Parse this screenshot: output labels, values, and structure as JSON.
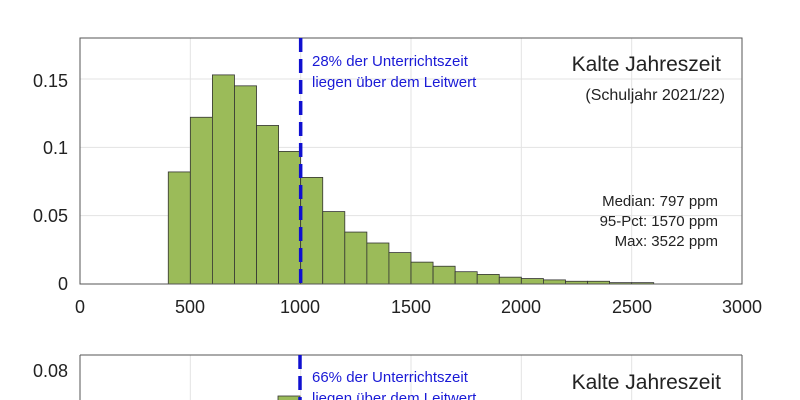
{
  "chart_data": [
    {
      "type": "histogram",
      "title": "Kalte Jahreszeit",
      "subtitle": "(Schuljahr 2021/22)",
      "xlim": [
        0,
        3000
      ],
      "ylim": [
        0,
        0.18
      ],
      "x_ticks": [
        "0",
        "500",
        "1000",
        "1500",
        "2000",
        "2500",
        "3000"
      ],
      "y_ticks": [
        "0",
        "0.05",
        "0.1",
        "0.15"
      ],
      "grid": true,
      "bar_color": "#9bbb59",
      "threshold_color": "#1010d0",
      "threshold_x": 1000,
      "bin_width": 100,
      "bin_starts": [
        400,
        500,
        600,
        700,
        800,
        900,
        1000,
        1100,
        1200,
        1300,
        1400,
        1500,
        1600,
        1700,
        1800,
        1900,
        2000,
        2100,
        2200,
        2300,
        2400,
        2500
      ],
      "values": [
        0.082,
        0.122,
        0.153,
        0.145,
        0.116,
        0.097,
        0.078,
        0.053,
        0.038,
        0.03,
        0.023,
        0.016,
        0.013,
        0.009,
        0.007,
        0.005,
        0.004,
        0.003,
        0.002,
        0.002,
        0.001,
        0.001
      ],
      "annotation_line1": "28% der Unterrichtszeit",
      "annotation_line2": "liegen über dem Leitwert",
      "stat_median": "Median: 797 ppm",
      "stat_p95": "95-Pct: 1570 ppm",
      "stat_max": "Max: 3522 ppm"
    },
    {
      "type": "histogram",
      "title": "Kalte Jahreszeit",
      "y_ticks": [
        "0.08"
      ],
      "annotation_line1": "66% der Unterrichtszeit",
      "annotation_line2": "liegen über dem Leitwert"
    }
  ]
}
